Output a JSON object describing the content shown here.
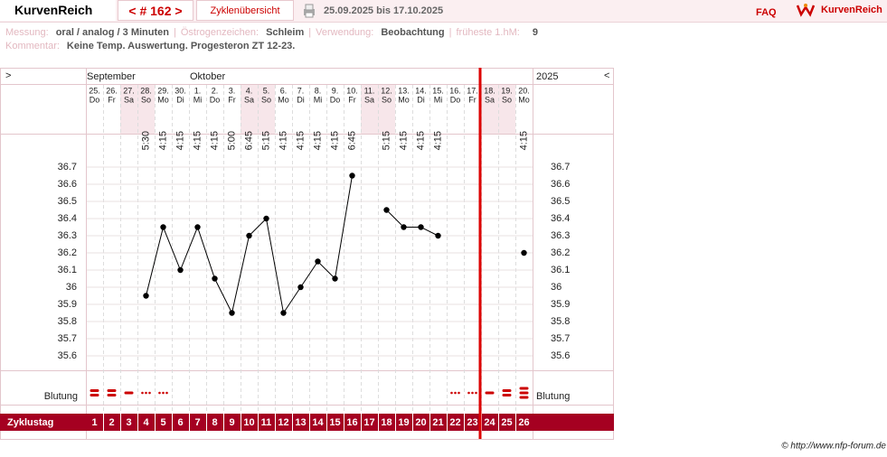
{
  "header": {
    "brand": "KurvenReich",
    "cycle_nav": "< # 162 >",
    "overview": "Zyklenübersicht",
    "date_range": "25.09.2025 bis 17.10.2025",
    "faq": "FAQ",
    "logo": "KurvenReich"
  },
  "info": {
    "measure_label": "Messung:",
    "measure": "oral / analog / 3 Minuten",
    "sep": "|",
    "estrogen_label": "Östrogenzeichen:",
    "estrogen": "Schleim",
    "usage_label": "Verwendung:",
    "usage": "Beobachtung",
    "earliest_label": "früheste 1.hM:",
    "earliest": "9",
    "comment_label": "Kommentar:",
    "comment": "Keine Temp. Auswertung. Progesteron ZT 12-23."
  },
  "chart_data": {
    "type": "line",
    "nav_prev": ">",
    "nav_next": "<",
    "year": "2025",
    "month_labels": [
      "September",
      null,
      null,
      null,
      null,
      null,
      "Oktober",
      null,
      null,
      null,
      null,
      null,
      null,
      null,
      null,
      null,
      null,
      null,
      null,
      null,
      null,
      null,
      null,
      null,
      null,
      null
    ],
    "categories": [
      "25.",
      "26.",
      "27.",
      "28.",
      "29.",
      "30.",
      "1.",
      "2.",
      "3.",
      "4.",
      "5.",
      "6.",
      "7.",
      "8.",
      "9.",
      "10.",
      "11.",
      "12.",
      "13.",
      "14.",
      "15.",
      "16.",
      "17.",
      "18.",
      "19.",
      "20."
    ],
    "weekdays": [
      "Do",
      "Fr",
      "Sa",
      "So",
      "Mo",
      "Di",
      "Mi",
      "Do",
      "Fr",
      "Sa",
      "So",
      "Mo",
      "Di",
      "Mi",
      "Do",
      "Fr",
      "Sa",
      "So",
      "Mo",
      "Di",
      "Mi",
      "Do",
      "Fr",
      "Sa",
      "So",
      "Mo"
    ],
    "times": [
      null,
      null,
      null,
      "5:30",
      "4:15",
      "4:15",
      "4:15",
      "4:15",
      "5:00",
      "6:45",
      "5:15",
      "4:15",
      "4:15",
      "4:15",
      "4:15",
      "6:45",
      null,
      "5:15",
      "4:15",
      "4:15",
      "4:15",
      null,
      null,
      null,
      null,
      "4:15"
    ],
    "values": [
      null,
      null,
      null,
      35.95,
      36.35,
      36.1,
      36.35,
      36.05,
      35.85,
      36.3,
      36.4,
      35.85,
      36.0,
      36.15,
      36.05,
      36.65,
      null,
      36.45,
      36.35,
      36.35,
      36.3,
      null,
      null,
      null,
      null,
      36.2
    ],
    "color": "#000000",
    "ylim": [
      35.6,
      36.7
    ],
    "yticks": [
      35.6,
      35.7,
      35.8,
      35.9,
      36,
      36.1,
      36.2,
      36.3,
      36.4,
      36.5,
      36.6,
      36.7
    ],
    "bleeding_label": "Blutung",
    "bleeding": [
      3,
      3,
      2,
      1,
      1,
      null,
      null,
      null,
      null,
      null,
      null,
      null,
      null,
      null,
      null,
      null,
      null,
      null,
      null,
      null,
      null,
      1,
      1,
      2,
      3,
      4
    ],
    "cycle_day_label": "Zyklustag",
    "cycle_days": [
      1,
      2,
      3,
      4,
      5,
      6,
      7,
      8,
      9,
      10,
      11,
      12,
      13,
      14,
      15,
      16,
      17,
      18,
      19,
      20,
      21,
      22,
      23,
      24,
      25,
      26
    ]
  },
  "footer": "© http://www.nfp-forum.de"
}
